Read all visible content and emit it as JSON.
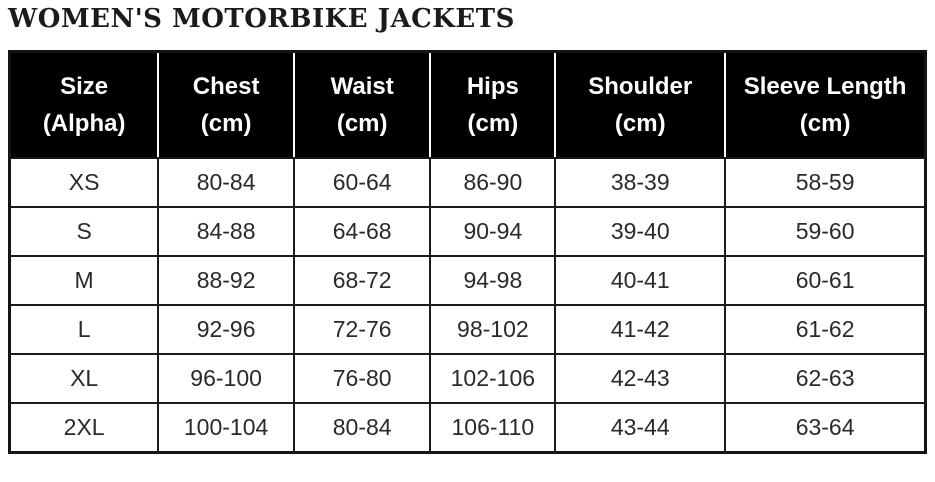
{
  "title": "WOMEN'S MOTORBIKE JACKETS",
  "colors": {
    "page_background": "#ffffff",
    "header_background": "#000000",
    "header_text": "#ffffff",
    "body_text": "#2a2a2a",
    "border": "#1c1c1c",
    "header_separator": "#ffffff"
  },
  "table": {
    "columns": [
      {
        "label": "Size",
        "unit": "(Alpha)",
        "width_pct": 16.2
      },
      {
        "label": "Chest",
        "unit": "(cm)",
        "width_pct": 14.8
      },
      {
        "label": "Waist",
        "unit": "(cm)",
        "width_pct": 14.9
      },
      {
        "label": "Hips",
        "unit": "(cm)",
        "width_pct": 13.6
      },
      {
        "label": "Shoulder",
        "unit": "(cm)",
        "width_pct": 18.6
      },
      {
        "label": "Sleeve Length",
        "unit": "(cm)",
        "width_pct": 21.9
      }
    ],
    "rows": [
      [
        "XS",
        "80-84",
        "60-64",
        "86-90",
        "38-39",
        "58-59"
      ],
      [
        "S",
        "84-88",
        "64-68",
        "90-94",
        "39-40",
        "59-60"
      ],
      [
        "M",
        "88-92",
        "68-72",
        "94-98",
        "40-41",
        "60-61"
      ],
      [
        "L",
        "92-96",
        "72-76",
        "98-102",
        "41-42",
        "61-62"
      ],
      [
        "XL",
        "96-100",
        "76-80",
        "102-106",
        "42-43",
        "62-63"
      ],
      [
        "2XL",
        "100-104",
        "80-84",
        "106-110",
        "43-44",
        "63-64"
      ]
    ]
  },
  "chart_data": {
    "type": "table",
    "title": "WOMEN'S MOTORBIKE JACKETS",
    "columns": [
      "Size (Alpha)",
      "Chest (cm)",
      "Waist (cm)",
      "Hips (cm)",
      "Shoulder (cm)",
      "Sleeve Length (cm)"
    ],
    "rows": [
      [
        "XS",
        "80-84",
        "60-64",
        "86-90",
        "38-39",
        "58-59"
      ],
      [
        "S",
        "84-88",
        "64-68",
        "90-94",
        "39-40",
        "59-60"
      ],
      [
        "M",
        "88-92",
        "68-72",
        "94-98",
        "40-41",
        "60-61"
      ],
      [
        "L",
        "92-96",
        "72-76",
        "98-102",
        "41-42",
        "61-62"
      ],
      [
        "XL",
        "96-100",
        "76-80",
        "102-106",
        "42-43",
        "62-63"
      ],
      [
        "2XL",
        "100-104",
        "80-84",
        "106-110",
        "43-44",
        "63-64"
      ]
    ]
  }
}
